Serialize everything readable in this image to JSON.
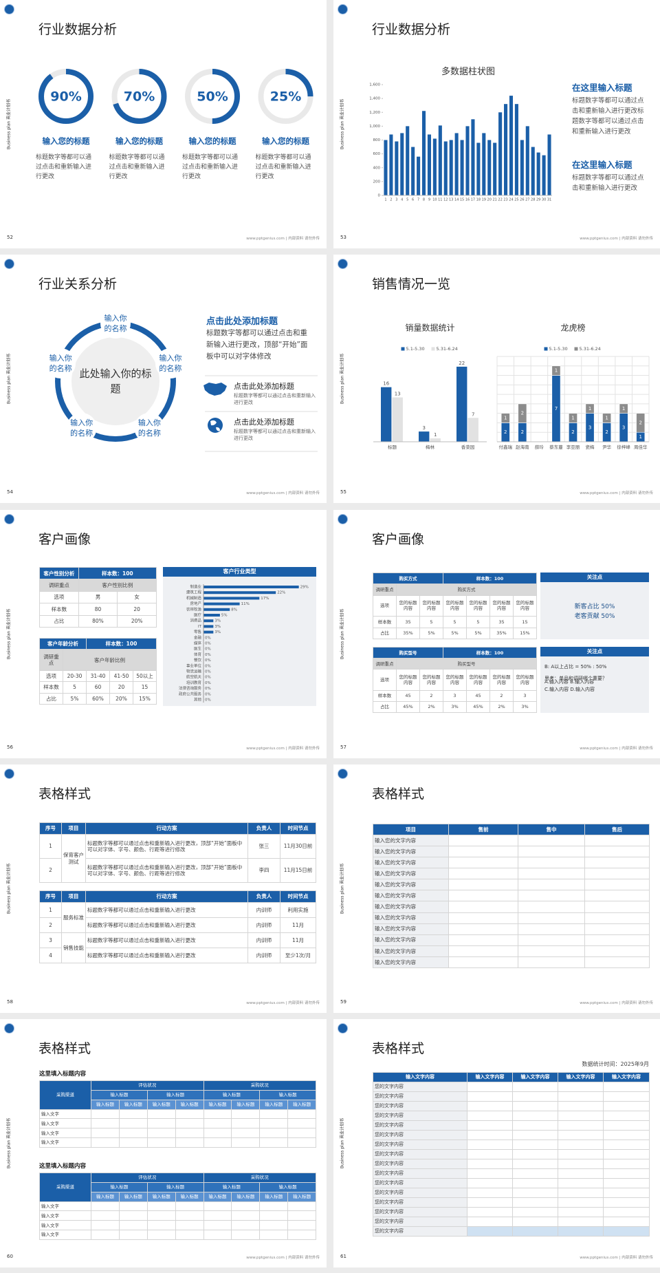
{
  "slides": [
    {
      "number": 52,
      "title": "行业数据分析",
      "side_label": "Business plan 商业计划书",
      "footer": "www.pptgenius.com | 内部资料 请勿外传",
      "rings": {
        "values": [
          90,
          70,
          50,
          25
        ],
        "value_labels": [
          "90%",
          "70%",
          "50%",
          "25%"
        ],
        "headings": [
          "输入您的标题",
          "输入您的标题",
          "输入您的标题",
          "输入您的标题"
        ],
        "texts": [
          "标题数字等都可以通过点击和重新输入进行更改",
          "标题数字等都可以通过点击和重新输入进行更改",
          "标题数字等都可以通过点击和重新输入进行更改",
          "标题数字等都可以通过点击和重新输入进行更改"
        ]
      }
    },
    {
      "number": 53,
      "title": "行业数据分析",
      "side_label": "Business plan 商业计划书",
      "footer": "www.pptgenius.com | 内部资料 请勿外传",
      "chart_data": {
        "type": "bar",
        "title": "多数据柱状图",
        "color": "#1b5fa8",
        "categories": [
          "1",
          "2",
          "3",
          "4",
          "5",
          "6",
          "7",
          "8",
          "9",
          "10",
          "11",
          "12",
          "13",
          "14",
          "15",
          "16",
          "17",
          "18",
          "19",
          "20",
          "21",
          "22",
          "23",
          "24",
          "25",
          "26",
          "27",
          "28",
          "29",
          "30",
          "31"
        ],
        "values": [
          800,
          880,
          780,
          900,
          1000,
          700,
          560,
          1220,
          880,
          820,
          1010,
          780,
          800,
          900,
          800,
          1000,
          1100,
          760,
          900,
          800,
          760,
          1200,
          1320,
          1440,
          1320,
          800,
          1000,
          700,
          620,
          580,
          880
        ],
        "ylim": [
          0,
          1600
        ],
        "yticks": [
          0,
          200,
          400,
          600,
          800,
          {
            "value": 1000,
            "label": "1,000"
          },
          {
            "value": 1200,
            "label": "1,200"
          },
          {
            "value": 1400,
            "label": "1,400"
          },
          {
            "value": 1600,
            "label": "1,600"
          }
        ]
      },
      "notes": [
        {
          "heading": "在这里输入标题",
          "text": "标题数字等都可以通过点击和重新输入进行更改标题数字等都可以通过点击和重新输入进行更改"
        },
        {
          "heading": "在这里输入标题",
          "text": "标题数字等都可以通过点击和重新输入进行更改"
        }
      ]
    },
    {
      "number": 54,
      "title": "行业关系分析",
      "side_label": "Business plan 商业计划书",
      "footer": "www.pptgenius.com | 内部资料 请勿外传",
      "center": "此处输入你的标题",
      "nodes": [
        "输入你的名称",
        "输入你的名称",
        "输入你的名称",
        "输入你的名称",
        "输入你的名称"
      ],
      "heading": "点击此处添加标题",
      "text": "标题数字等都可以通过点击和重新输入进行更改，顶部“开始”面板中可以对字体修改",
      "items": [
        {
          "title": "点击此处添加标题",
          "text": "标题数字等都可以通过点击和重新输入进行更改"
        },
        {
          "title": "点击此处添加标题",
          "text": "标题数字等都可以通过点击和重新输入进行更改"
        }
      ]
    },
    {
      "number": 55,
      "title": "销售情况一览",
      "side_label": "Business plan 商业计划书",
      "footer": "www.pptgenius.com | 内部资料 请勿外传",
      "chart_data": [
        {
          "type": "bar",
          "title": "销量数据统计",
          "categories": [
            "标题",
            "梅林",
            "香菜园"
          ],
          "ylim": [
            0,
            25
          ],
          "grid": false,
          "stacked": false,
          "series": [
            {
              "name": "5.1-5.30",
              "color": "#1b5fa8",
              "values": [
                16,
                3,
                22
              ]
            },
            {
              "name": "5.31-6.24",
              "color": "#e2e2e2",
              "values": [
                13,
                1,
                7
              ]
            }
          ]
        },
        {
          "type": "bar",
          "title": "龙虎榜",
          "categories": [
            "付鑫瑞",
            "赵海南",
            "薛玲",
            "蔡东蔓",
            "李亚丽",
            "瓷梅",
            "尹华",
            "徐梓峰",
            "周佳华"
          ],
          "ylim": [
            0,
            9
          ],
          "grid": true,
          "stacked": true,
          "series": [
            {
              "name": "5.1-5.30",
              "color": "#1b5fa8",
              "values": [
                2,
                2,
                0,
                7,
                2,
                3,
                2,
                3,
                1
              ]
            },
            {
              "name": "5.31-6.24",
              "color": "#8c8c8c",
              "values": [
                1,
                2,
                0,
                1,
                1,
                1,
                1,
                1,
                2
              ]
            }
          ]
        }
      ]
    },
    {
      "number": 56,
      "title": "客户画像",
      "side_label": "Business plan 商业计划书",
      "footer": "www.pptgenius.com | 内部资料 请勿外传",
      "tables": [
        {
          "header": [
            "客户性别分析",
            "样本数：100"
          ],
          "rows": [
            [
              "调研重点",
              "客户性别比例"
            ],
            [
              "选项",
              "男",
              "女"
            ],
            [
              "样本数",
              "80",
              "20"
            ],
            [
              "占比",
              "80%",
              "20%"
            ]
          ]
        },
        {
          "header": [
            "客户年龄分析",
            "样本数：100"
          ],
          "rows": [
            [
              "调研重点",
              "客户年龄比例"
            ],
            [
              "选项",
              "20-30",
              "31-40",
              "41-50",
              "50以上"
            ],
            [
              "样本数",
              "5",
              "60",
              "20",
              "15"
            ],
            [
              "占比",
              "5%",
              "60%",
              "20%",
              "15%"
            ]
          ]
        }
      ],
      "chart_data": {
        "type": "barh",
        "title": "客户行业类型",
        "color": "#1b5fa8",
        "xlim": [
          0,
          32
        ],
        "categories": [
          "制造业",
          "建筑工程",
          "机械制造",
          "房地产",
          "农林牧渔",
          "医疗",
          "消费品",
          "IT",
          "零售",
          "金融",
          "媒体",
          "医生",
          "体育",
          "餐饮",
          "事业单位",
          "物流运输",
          "航空航天",
          "培训教育",
          "法律咨询服务",
          "政府公共服务",
          "其他"
        ],
        "values": [
          29,
          22,
          17,
          11,
          8,
          5,
          3,
          3,
          3,
          0,
          0,
          0,
          0,
          0,
          0,
          0,
          0,
          0,
          0,
          0,
          0
        ],
        "value_labels": [
          "29%",
          "22%",
          "17%",
          "11%",
          "8%",
          "5%",
          "3%",
          "3%",
          "3%",
          "0%",
          "0%",
          "0%",
          "0%",
          "0%",
          "0%",
          "0%",
          "0%",
          "0%",
          "0%",
          "0%",
          "0%"
        ]
      }
    },
    {
      "number": 57,
      "title": "客户画像",
      "side_label": "Business plan 商业计划书",
      "footer": "www.pptgenius.com | 内部资料 请勿外传",
      "tables": [
        {
          "header": [
            "购买方式",
            "样本数：100"
          ],
          "rows": [
            [
              "调研重点",
              "购买方式"
            ],
            [
              "选项",
              "您的标题内容",
              "您的标题内容",
              "您的标题内容",
              "您的标题内容",
              "您的标题内容",
              "您的标题内容"
            ],
            [
              "样本数",
              "35",
              "5",
              "5",
              "5",
              "35",
              "15"
            ],
            [
              "占比",
              "35%",
              "5%",
              "5%",
              "5%",
              "35%",
              "15%"
            ]
          ]
        },
        {
          "header": [
            "购买型号",
            "样本数：100"
          ],
          "rows": [
            [
              "调研重点",
              "购买型号"
            ],
            [
              "选项",
              "您的标题内容",
              "您的标题内容",
              "您的标题内容",
              "您的标题内容",
              "您的标题内容",
              "您的标题内容"
            ],
            [
              "样本数",
              "45",
              "2",
              "3",
              "45",
              "2",
              "3"
            ],
            [
              "占比",
              "45%",
              "2%",
              "3%",
              "45%",
              "2%",
              "3%"
            ]
          ]
        }
      ],
      "panels": [
        {
          "title": "关注点",
          "lines": [
            "新客占比 50%",
            "老客贡献 50%"
          ]
        },
        {
          "title": "关注点",
          "lines": [
            "B: A以上占比 = 50% : 50%",
            "思考：单品和调研哪个重要？",
            "A.输入内容  B.输入内容",
            "C.输入内容  D.输入内容"
          ]
        }
      ]
    },
    {
      "number": 58,
      "title": "表格样式",
      "side_label": "Business plan 商业计划书",
      "footer": "www.pptgenius.com | 内部资料 请勿外传",
      "tables": [
        {
          "header": [
            "序号",
            "项目",
            "行动方案",
            "负责人",
            "时间节点"
          ],
          "groups": [
            {
              "item": "保育客户测试",
              "rows": [
                [
                  "1",
                  "标题数字等都可以通过点击和重新输入进行更改，顶部“开始”面板中可以对字体、字号、颜色、行距等进行修改",
                  "张三",
                  "11月30日前"
                ],
                [
                  "2",
                  "标题数字等都可以通过点击和重新输入进行更改，顶部“开始”面板中可以对字体、字号、颜色、行距等进行修改",
                  "李四",
                  "11月15日前"
                ]
              ]
            }
          ]
        },
        {
          "header": [
            "序号",
            "项目",
            "行动方案",
            "负责人",
            "时间节点"
          ],
          "groups": [
            {
              "item": "服务标准",
              "rows": [
                [
                  "1",
                  "标题数字等都可以通过点击和重新输入进行更改",
                  "内训师",
                  "利用实施"
                ],
                [
                  "2",
                  "标题数字等都可以通过点击和重新输入进行更改",
                  "内训师",
                  "11月"
                ]
              ]
            },
            {
              "item": "销售技能",
              "rows": [
                [
                  "3",
                  "标题数字等都可以通过点击和重新输入进行更改",
                  "内训师",
                  "11月"
                ],
                [
                  "4",
                  "标题数字等都可以通过点击和重新输入进行更改",
                  "内训师",
                  "至少1次/月"
                ]
              ]
            }
          ]
        }
      ]
    },
    {
      "number": 59,
      "title": "表格样式",
      "side_label": "Business plan 商业计划书",
      "footer": "www.pptgenius.com | 内部资料 请勿外传",
      "header": [
        "项目",
        "售前",
        "售中",
        "售后"
      ],
      "rows": [
        "输入您的文字内容",
        "输入您的文字内容",
        "输入您的文字内容",
        "输入您的文字内容",
        "输入您的文字内容",
        "输入您的文字内容",
        "输入您的文字内容",
        "输入您的文字内容",
        "输入您的文字内容",
        "输入您的文字内容",
        "输入您的文字内容",
        "输入您的文字内容"
      ]
    },
    {
      "number": 60,
      "title": "表格样式",
      "side_label": "Business plan 商业计划书",
      "footer": "www.pptgenius.com | 内部资料 请勿外传",
      "blocks": [
        {
          "heading": "这里填入标题内容",
          "channel": "采购渠道",
          "groups": [
            "评估状况",
            "采购状况"
          ],
          "subheads": [
            "输入标题",
            "输入标题",
            "输入标题",
            "输入标题"
          ],
          "columns": [
            "输入标题",
            "输入标题",
            "输入标题",
            "输入标题",
            "输入标题",
            "输入标题",
            "输入标题",
            "输入标题"
          ],
          "rows": [
            "输入文字",
            "输入文字",
            "输入文字",
            "输入文字"
          ]
        },
        {
          "heading": "这里填入标题内容",
          "channel": "采购渠道",
          "groups": [
            "评估状况",
            "采购状况"
          ],
          "subheads": [
            "输入标题",
            "输入标题",
            "输入标题",
            "输入标题"
          ],
          "columns": [
            "输入标题",
            "输入标题",
            "输入标题",
            "输入标题",
            "输入标题",
            "输入标题",
            "输入标题",
            "输入标题"
          ],
          "rows": [
            "输入文字",
            "输入文字",
            "输入文字",
            "输入文字"
          ]
        }
      ]
    },
    {
      "number": 61,
      "title": "表格样式",
      "side_label": "Business plan 商业计划书",
      "footer": "www.pptgenius.com | 内部资料 请勿外传",
      "date_note": "数据统计时间：2025年9月",
      "header": [
        "输入文字内容",
        "输入文字内容",
        "输入文字内容",
        "输入文字内容",
        "输入文字内容"
      ],
      "rows": [
        "您的文字内容",
        "您的文字内容",
        "您的文字内容",
        "您的文字内容",
        "您的文字内容",
        "您的文字内容",
        "您的文字内容",
        "您的文字内容",
        "您的文字内容",
        "您的文字内容",
        "您的文字内容",
        "您的文字内容",
        "您的文字内容",
        "您的文字内容",
        "您的文字内容",
        "您的文字内容"
      ]
    }
  ]
}
